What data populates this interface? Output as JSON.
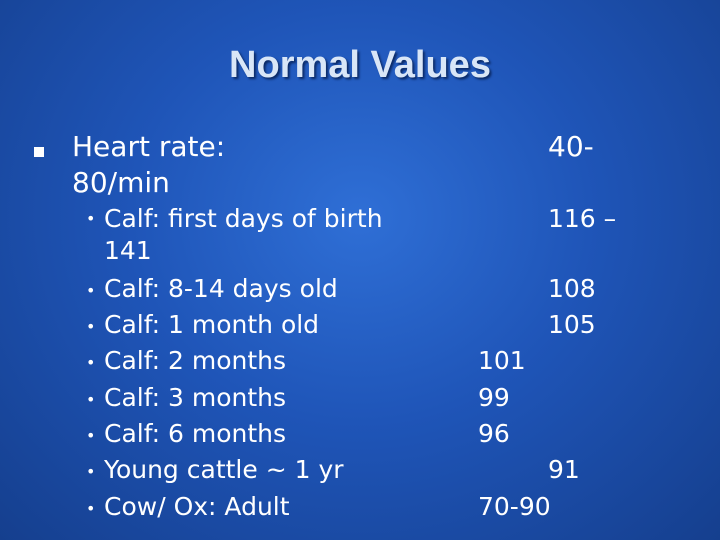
{
  "title": "Normal Values",
  "main_item": {
    "label_line1": "Heart rate:",
    "label_line2": "80/min",
    "value_part": "40-"
  },
  "items": [
    {
      "label": "Calf: first days of birth",
      "value": "116 –",
      "continuation": "141"
    },
    {
      "label": "Calf: 8-14 days old",
      "value": "108"
    },
    {
      "label": "Calf: 1 month old",
      "value": "105"
    },
    {
      "label": "Calf: 2 months",
      "value": "101"
    },
    {
      "label": "Calf: 3 months",
      "value": "99"
    },
    {
      "label": "Calf: 6 months",
      "value": "96"
    },
    {
      "label": "Young cattle ~ 1 yr",
      "value": "91"
    },
    {
      "label": "Cow/ Ox: Adult",
      "value": "70-90"
    }
  ],
  "bullet_glyph": "•"
}
